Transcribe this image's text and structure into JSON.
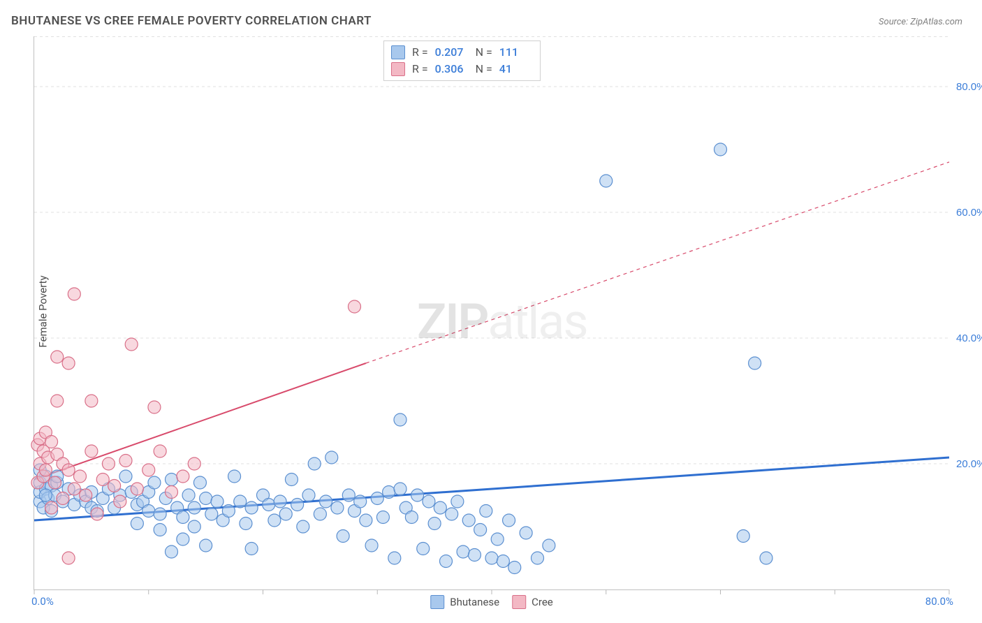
{
  "title": "BHUTANESE VS CREE FEMALE POVERTY CORRELATION CHART",
  "source": "Source: ZipAtlas.com",
  "ylabel": "Female Poverty",
  "watermark_a": "ZIP",
  "watermark_b": "atlas",
  "chart": {
    "type": "scatter",
    "xlim": [
      0,
      80
    ],
    "ylim": [
      0,
      88
    ],
    "xticks": [
      0,
      10,
      20,
      30,
      40,
      50,
      60,
      70,
      80
    ],
    "yticks": [
      20,
      40,
      60,
      80
    ],
    "x_axis_labels": [
      {
        "v": 0,
        "t": "0.0%"
      },
      {
        "v": 80,
        "t": "80.0%"
      }
    ],
    "y_axis_labels": [
      {
        "v": 20,
        "t": "20.0%"
      },
      {
        "v": 40,
        "t": "40.0%"
      },
      {
        "v": 60,
        "t": "60.0%"
      },
      {
        "v": 80,
        "t": "80.0%"
      }
    ],
    "grid_color": "#e0e0e0",
    "background": "#ffffff",
    "marker_radius": 9,
    "series": [
      {
        "name": "Bhutanese",
        "fill": "#a8c8ed",
        "stroke": "#5b8fd0",
        "fill_opacity": 0.55,
        "R": "0.207",
        "N": "111",
        "trend": {
          "x1": 0,
          "y1": 11,
          "x2": 80,
          "y2": 21,
          "color": "#2f6fd0",
          "width": 3
        },
        "points": [
          [
            0.5,
            14
          ],
          [
            0.5,
            15.5
          ],
          [
            0.5,
            17
          ],
          [
            0.8,
            13
          ],
          [
            1,
            16
          ],
          [
            1,
            18
          ],
          [
            1.2,
            14.5
          ],
          [
            1.5,
            16.5
          ],
          [
            1.5,
            12.5
          ],
          [
            1.8,
            15
          ],
          [
            2,
            17
          ],
          [
            2.5,
            14
          ],
          [
            3,
            16
          ],
          [
            3.5,
            13.5
          ],
          [
            4,
            15
          ],
          [
            4.5,
            14
          ],
          [
            5,
            13
          ],
          [
            5,
            15.5
          ],
          [
            5.5,
            12.5
          ],
          [
            6,
            14.5
          ],
          [
            6.5,
            16
          ],
          [
            7,
            13
          ],
          [
            7.5,
            15
          ],
          [
            8,
            18
          ],
          [
            8.5,
            15.5
          ],
          [
            9,
            13.5
          ],
          [
            9,
            10.5
          ],
          [
            9.5,
            14
          ],
          [
            10,
            15.5
          ],
          [
            10,
            12.5
          ],
          [
            10.5,
            17
          ],
          [
            11,
            12
          ],
          [
            11,
            9.5
          ],
          [
            11.5,
            14.5
          ],
          [
            12,
            17.5
          ],
          [
            12,
            6
          ],
          [
            12.5,
            13
          ],
          [
            13,
            11.5
          ],
          [
            13,
            8
          ],
          [
            13.5,
            15
          ],
          [
            14,
            10
          ],
          [
            14,
            13
          ],
          [
            14.5,
            17
          ],
          [
            15,
            14.5
          ],
          [
            15,
            7
          ],
          [
            15.5,
            12
          ],
          [
            16,
            14
          ],
          [
            16.5,
            11
          ],
          [
            17,
            12.5
          ],
          [
            17.5,
            18
          ],
          [
            18,
            14
          ],
          [
            18.5,
            10.5
          ],
          [
            19,
            13
          ],
          [
            19,
            6.5
          ],
          [
            20,
            15
          ],
          [
            20.5,
            13.5
          ],
          [
            21,
            11
          ],
          [
            21.5,
            14
          ],
          [
            22,
            12
          ],
          [
            22.5,
            17.5
          ],
          [
            23,
            13.5
          ],
          [
            23.5,
            10
          ],
          [
            24,
            15
          ],
          [
            24.5,
            20
          ],
          [
            25,
            12
          ],
          [
            25.5,
            14
          ],
          [
            26,
            21
          ],
          [
            26.5,
            13
          ],
          [
            27,
            8.5
          ],
          [
            27.5,
            15
          ],
          [
            28,
            12.5
          ],
          [
            28.5,
            14
          ],
          [
            29,
            11
          ],
          [
            29.5,
            7
          ],
          [
            30,
            14.5
          ],
          [
            30.5,
            11.5
          ],
          [
            31,
            15.5
          ],
          [
            31.5,
            5
          ],
          [
            32,
            16
          ],
          [
            32.5,
            13
          ],
          [
            33,
            11.5
          ],
          [
            33.5,
            15
          ],
          [
            34,
            6.5
          ],
          [
            34.5,
            14
          ],
          [
            35,
            10.5
          ],
          [
            35.5,
            13
          ],
          [
            36,
            4.5
          ],
          [
            36.5,
            12
          ],
          [
            37,
            14
          ],
          [
            37.5,
            6
          ],
          [
            38,
            11
          ],
          [
            38.5,
            5.5
          ],
          [
            39,
            9.5
          ],
          [
            39.5,
            12.5
          ],
          [
            40,
            5
          ],
          [
            40.5,
            8
          ],
          [
            41,
            4.5
          ],
          [
            41.5,
            11
          ],
          [
            42,
            3.5
          ],
          [
            43,
            9
          ],
          [
            44,
            5
          ],
          [
            45,
            7
          ],
          [
            32,
            27
          ],
          [
            50,
            65
          ],
          [
            60,
            70
          ],
          [
            63,
            36
          ],
          [
            62,
            8.5
          ],
          [
            64,
            5
          ],
          [
            1,
            15
          ],
          [
            2,
            18
          ],
          [
            0.5,
            19
          ]
        ]
      },
      {
        "name": "Cree",
        "fill": "#f3b8c4",
        "stroke": "#d96f88",
        "fill_opacity": 0.55,
        "R": "0.306",
        "N": "41",
        "trend": {
          "x1": 0,
          "y1": 17.5,
          "x2": 29,
          "y2": 36,
          "solid": true,
          "ext_x2": 80,
          "ext_y2": 68,
          "color": "#d84a6b",
          "width": 2
        },
        "points": [
          [
            0.3,
            17
          ],
          [
            0.3,
            23
          ],
          [
            0.5,
            20
          ],
          [
            0.5,
            24
          ],
          [
            0.8,
            18
          ],
          [
            0.8,
            22
          ],
          [
            1,
            25
          ],
          [
            1,
            19
          ],
          [
            1.2,
            21
          ],
          [
            1.5,
            23.5
          ],
          [
            1.5,
            13
          ],
          [
            1.8,
            17
          ],
          [
            2,
            30
          ],
          [
            2,
            21.5
          ],
          [
            2,
            37
          ],
          [
            2.5,
            14.5
          ],
          [
            2.5,
            20
          ],
          [
            3,
            19
          ],
          [
            3,
            36
          ],
          [
            3.5,
            16
          ],
          [
            3.5,
            47
          ],
          [
            4,
            18
          ],
          [
            4.5,
            15
          ],
          [
            5,
            22
          ],
          [
            5,
            30
          ],
          [
            5.5,
            12
          ],
          [
            6,
            17.5
          ],
          [
            6.5,
            20
          ],
          [
            7,
            16.5
          ],
          [
            7.5,
            14
          ],
          [
            8,
            20.5
          ],
          [
            8.5,
            39
          ],
          [
            9,
            16
          ],
          [
            10,
            19
          ],
          [
            10.5,
            29
          ],
          [
            11,
            22
          ],
          [
            12,
            15.5
          ],
          [
            13,
            18
          ],
          [
            14,
            20
          ],
          [
            3,
            5
          ],
          [
            28,
            45
          ]
        ]
      }
    ]
  },
  "legend_bottom": [
    {
      "label": "Bhutanese",
      "fill": "#a8c8ed",
      "stroke": "#5b8fd0"
    },
    {
      "label": "Cree",
      "fill": "#f3b8c4",
      "stroke": "#d96f88"
    }
  ]
}
